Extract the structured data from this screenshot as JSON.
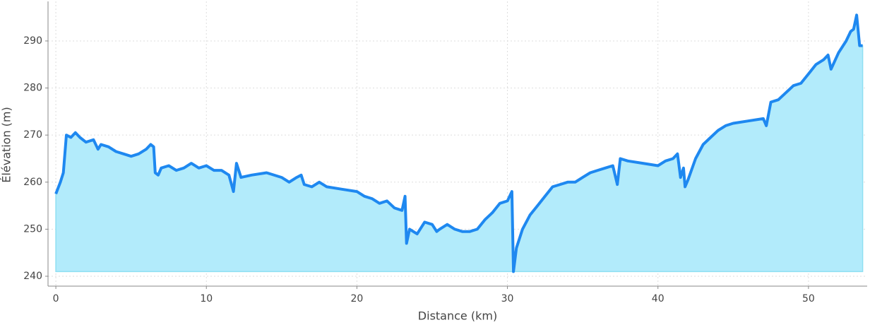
{
  "chart_data": {
    "type": "area",
    "xlabel": "Distance (km)",
    "ylabel": "Élévation (m)",
    "xlim": [
      -0.52,
      53.9
    ],
    "ylim": [
      237.9,
      298.4
    ],
    "xticks": [
      0,
      10,
      20,
      30,
      40,
      50
    ],
    "yticks": [
      240,
      250,
      260,
      270,
      280,
      290
    ],
    "grid": true,
    "line_color": "#1e88f0",
    "fill_color": "#b2ebfb",
    "x": [
      0,
      0.3,
      0.5,
      0.7,
      1,
      1.3,
      1.6,
      2,
      2.5,
      2.8,
      3,
      3.5,
      4,
      4.5,
      5,
      5.5,
      6,
      6.3,
      6.5,
      6.6,
      6.8,
      7,
      7.5,
      8,
      8.5,
      9,
      9.5,
      10,
      10.5,
      11,
      11.5,
      11.8,
      12,
      12.3,
      13,
      14,
      15,
      15.5,
      16,
      16.3,
      16.5,
      17,
      17.5,
      18,
      19,
      20,
      20.5,
      21,
      21.5,
      22,
      22.5,
      23,
      23.2,
      23.3,
      23.5,
      24,
      24.5,
      25,
      25.3,
      25.5,
      26,
      26.5,
      27,
      27.5,
      28,
      28.5,
      29,
      29.5,
      30,
      30.3,
      30.4,
      30.6,
      31,
      31.5,
      32,
      32.5,
      33,
      33.5,
      34,
      34.5,
      35,
      35.5,
      36,
      36.5,
      37,
      37.3,
      37.5,
      38,
      39,
      40,
      40.5,
      41,
      41.3,
      41.5,
      41.7,
      41.8,
      42,
      42.5,
      43,
      43.5,
      44,
      44.5,
      45,
      46,
      47,
      47.2,
      47.5,
      48,
      48.5,
      49,
      49.5,
      50,
      50.5,
      51,
      51.3,
      51.5,
      52,
      52.5,
      52.8,
      53,
      53.2,
      53.4,
      53.6
    ],
    "values": [
      257.5,
      260,
      262,
      270,
      269.5,
      270.5,
      269.5,
      268.5,
      269,
      267,
      268,
      267.5,
      266.5,
      266,
      265.5,
      266,
      267,
      268,
      267.5,
      262,
      261.5,
      263,
      263.5,
      262.5,
      263,
      264,
      263,
      263.5,
      262.5,
      262.5,
      261.5,
      258,
      264,
      261,
      261.5,
      262,
      261,
      260,
      261,
      261.5,
      259.5,
      259,
      260,
      259,
      258.5,
      258,
      257,
      256.5,
      255.5,
      256,
      254.5,
      254,
      257,
      247,
      250,
      249,
      251.5,
      251,
      249.5,
      250,
      251,
      250,
      249.5,
      249.5,
      250,
      252,
      253.5,
      255.5,
      256,
      258,
      241,
      246,
      250,
      253,
      255,
      257,
      259,
      259.5,
      260,
      260,
      261,
      262,
      262.5,
      263,
      263.5,
      259.5,
      265,
      264.5,
      264,
      263.5,
      264.5,
      265,
      266,
      261,
      263,
      259,
      260.5,
      265,
      268,
      269.5,
      271,
      272,
      272.5,
      273,
      273.5,
      272,
      277,
      277.5,
      279,
      280.5,
      281,
      283,
      285,
      286,
      287,
      284,
      287.5,
      290,
      292,
      292.5,
      295.5,
      289,
      289
    ]
  }
}
